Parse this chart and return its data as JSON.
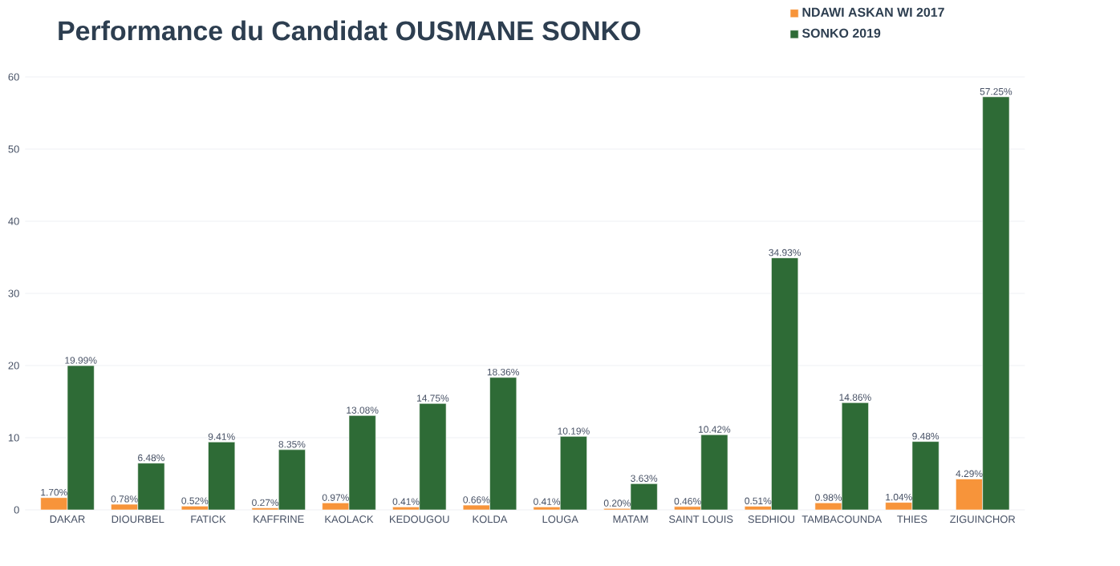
{
  "chart_data": {
    "type": "bar",
    "title": "Performance du Candidat OUSMANE SONKO",
    "categories": [
      "DAKAR",
      "DIOURBEL",
      "FATICK",
      "KAFFRINE",
      "KAOLACK",
      "KEDOUGOU",
      "KOLDA",
      "LOUGA",
      "MATAM",
      "SAINT LOUIS",
      "SEDHIOU",
      "TAMBACOUNDA",
      "THIES",
      "ZIGUINCHOR"
    ],
    "series": [
      {
        "name": "NDAWI ASKAN WI 2017",
        "color": "#f7943a",
        "values": [
          1.7,
          0.78,
          0.52,
          0.27,
          0.97,
          0.41,
          0.66,
          0.41,
          0.2,
          0.46,
          0.51,
          0.98,
          1.04,
          4.29
        ],
        "value_labels": [
          "1.70%",
          "0.78%",
          "0.52%",
          "0.27%",
          "0.97%",
          "0.41%",
          "0.66%",
          "0.41%",
          "0.20%",
          "0.46%",
          "0.51%",
          "0.98%",
          "1.04%",
          "4.29%"
        ]
      },
      {
        "name": "SONKO 2019",
        "color": "#2e6b36",
        "values": [
          19.99,
          6.48,
          9.41,
          8.35,
          13.08,
          14.75,
          18.36,
          10.19,
          3.63,
          10.42,
          34.93,
          14.86,
          9.48,
          57.25
        ],
        "value_labels": [
          "19.99%",
          "6.48%",
          "9.41%",
          "8.35%",
          "13.08%",
          "14.75%",
          "18.36%",
          "10.19%",
          "3.63%",
          "10.42%",
          "34.93%",
          "14.86%",
          "9.48%",
          "57.25%"
        ]
      }
    ],
    "ylim": [
      0,
      60
    ],
    "yticks": [
      0,
      10,
      20,
      30,
      40,
      50,
      60
    ],
    "grid": "y",
    "legend": "top right"
  }
}
